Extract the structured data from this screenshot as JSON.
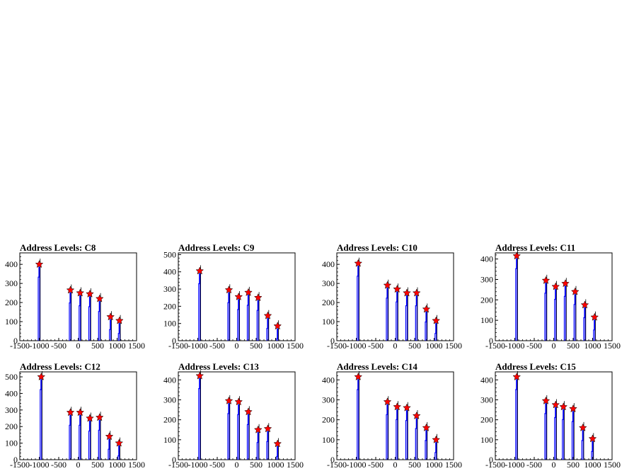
{
  "figure": {
    "background": "#ffffff"
  },
  "style": {
    "hist_color": "#0000ff",
    "fit_color": "#000000",
    "marker_color": "#ff0000"
  },
  "chart_data": [
    {
      "type": "histogram",
      "title": "Address Levels: C8",
      "xlim": [
        -1500,
        1500
      ],
      "ylim": [
        0,
        460
      ],
      "x_ticks": [
        "-1500",
        "-1000",
        "-500",
        "0",
        "500",
        "1000",
        "1500"
      ],
      "y_ticks": [
        "0",
        "100",
        "200",
        "300",
        "400"
      ],
      "peaks": [
        {
          "x": -1000,
          "y": 400
        },
        {
          "x": -200,
          "y": 265
        },
        {
          "x": 50,
          "y": 250
        },
        {
          "x": 300,
          "y": 245
        },
        {
          "x": 550,
          "y": 220
        },
        {
          "x": 830,
          "y": 125
        },
        {
          "x": 1060,
          "y": 105
        }
      ]
    },
    {
      "type": "histogram",
      "title": "Address Levels: C9",
      "xlim": [
        -1500,
        1500
      ],
      "ylim": [
        0,
        510
      ],
      "x_ticks": [
        "-1500",
        "-1000",
        "-500",
        "0",
        "500",
        "1000",
        "1500"
      ],
      "y_ticks": [
        "0",
        "100",
        "200",
        "300",
        "400",
        "500"
      ],
      "peaks": [
        {
          "x": -950,
          "y": 405
        },
        {
          "x": -200,
          "y": 295
        },
        {
          "x": 50,
          "y": 255
        },
        {
          "x": 300,
          "y": 280
        },
        {
          "x": 550,
          "y": 250
        },
        {
          "x": 800,
          "y": 145
        },
        {
          "x": 1050,
          "y": 85
        }
      ]
    },
    {
      "type": "histogram",
      "title": "Address Levels: C10",
      "xlim": [
        -1500,
        1500
      ],
      "ylim": [
        0,
        460
      ],
      "x_ticks": [
        "-1500",
        "-1000",
        "-500",
        "0",
        "500",
        "1000",
        "1500"
      ],
      "y_ticks": [
        "0",
        "100",
        "200",
        "300",
        "400"
      ],
      "peaks": [
        {
          "x": -950,
          "y": 405
        },
        {
          "x": -200,
          "y": 290
        },
        {
          "x": 50,
          "y": 270
        },
        {
          "x": 300,
          "y": 250
        },
        {
          "x": 550,
          "y": 250
        },
        {
          "x": 800,
          "y": 165
        },
        {
          "x": 1050,
          "y": 105
        }
      ]
    },
    {
      "type": "histogram",
      "title": "Address Levels: C11",
      "xlim": [
        -1500,
        1500
      ],
      "ylim": [
        0,
        430
      ],
      "x_ticks": [
        "-1500",
        "-1000",
        "-500",
        "0",
        "500",
        "1000",
        "1500"
      ],
      "y_ticks": [
        "0",
        "100",
        "200",
        "300",
        "400"
      ],
      "peaks": [
        {
          "x": -950,
          "y": 415
        },
        {
          "x": -200,
          "y": 295
        },
        {
          "x": 50,
          "y": 265
        },
        {
          "x": 300,
          "y": 280
        },
        {
          "x": 550,
          "y": 240
        },
        {
          "x": 800,
          "y": 175
        },
        {
          "x": 1050,
          "y": 115
        }
      ]
    },
    {
      "type": "histogram",
      "title": "Address Levels: C12",
      "xlim": [
        -1500,
        1500
      ],
      "ylim": [
        0,
        530
      ],
      "x_ticks": [
        "-1500",
        "-1000",
        "-500",
        "0",
        "500",
        "1000",
        "1500"
      ],
      "y_ticks": [
        "0",
        "100",
        "200",
        "300",
        "400",
        "500"
      ],
      "peaks": [
        {
          "x": -950,
          "y": 500
        },
        {
          "x": -200,
          "y": 285
        },
        {
          "x": 50,
          "y": 285
        },
        {
          "x": 300,
          "y": 250
        },
        {
          "x": 550,
          "y": 255
        },
        {
          "x": 800,
          "y": 140
        },
        {
          "x": 1050,
          "y": 100
        }
      ]
    },
    {
      "type": "histogram",
      "title": "Address Levels: C13",
      "xlim": [
        -1500,
        1500
      ],
      "ylim": [
        0,
        440
      ],
      "x_ticks": [
        "-1500",
        "-1000",
        "-500",
        "0",
        "500",
        "1000",
        "1500"
      ],
      "y_ticks": [
        "0",
        "100",
        "200",
        "300",
        "400"
      ],
      "peaks": [
        {
          "x": -950,
          "y": 420
        },
        {
          "x": -200,
          "y": 295
        },
        {
          "x": 50,
          "y": 290
        },
        {
          "x": 300,
          "y": 240
        },
        {
          "x": 550,
          "y": 150
        },
        {
          "x": 800,
          "y": 155
        },
        {
          "x": 1050,
          "y": 80
        }
      ]
    },
    {
      "type": "histogram",
      "title": "Address Levels: C14",
      "xlim": [
        -1500,
        1500
      ],
      "ylim": [
        0,
        440
      ],
      "x_ticks": [
        "-1500",
        "-1000",
        "-500",
        "0",
        "500",
        "1000",
        "1500"
      ],
      "y_ticks": [
        "0",
        "100",
        "200",
        "300",
        "400"
      ],
      "peaks": [
        {
          "x": -950,
          "y": 415
        },
        {
          "x": -200,
          "y": 290
        },
        {
          "x": 50,
          "y": 265
        },
        {
          "x": 300,
          "y": 260
        },
        {
          "x": 550,
          "y": 220
        },
        {
          "x": 800,
          "y": 160
        },
        {
          "x": 1050,
          "y": 100
        }
      ]
    },
    {
      "type": "histogram",
      "title": "Address Levels: C15",
      "xlim": [
        -1500,
        1500
      ],
      "ylim": [
        0,
        440
      ],
      "x_ticks": [
        "-1500",
        "-1000",
        "-500",
        "0",
        "500",
        "1000",
        "1500"
      ],
      "y_ticks": [
        "0",
        "100",
        "200",
        "300",
        "400"
      ],
      "peaks": [
        {
          "x": -950,
          "y": 415
        },
        {
          "x": -200,
          "y": 295
        },
        {
          "x": 50,
          "y": 275
        },
        {
          "x": 250,
          "y": 265
        },
        {
          "x": 500,
          "y": 255
        },
        {
          "x": 750,
          "y": 160
        },
        {
          "x": 1000,
          "y": 105
        }
      ]
    }
  ]
}
